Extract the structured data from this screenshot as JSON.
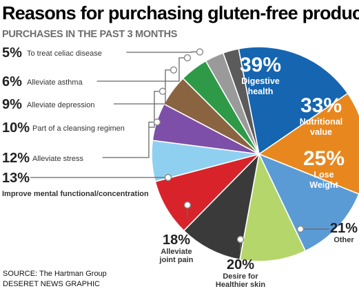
{
  "chart_data": {
    "type": "pie",
    "title": "Reasons for purchasing gluten-free products",
    "subtitle": "PURCHASES IN THE PAST 3 MONTHS",
    "slices": [
      {
        "value_label": "39%",
        "value": 39,
        "label": "Digestive health",
        "label_lines": [
          "Digestive",
          "health"
        ],
        "color": "#1565b0"
      },
      {
        "value_label": "33%",
        "value": 33,
        "label": "Nutritional value",
        "label_lines": [
          "Nutritional",
          "value"
        ],
        "color": "#e8871e"
      },
      {
        "value_label": "25%",
        "value": 25,
        "label": "Lose Weight",
        "label_lines": [
          "Lose",
          "Weight"
        ],
        "color": "#5b9bd5"
      },
      {
        "value_label": "21%",
        "value": 21,
        "label": "Other",
        "label_lines": [
          "Other"
        ],
        "color": "#b5d66b"
      },
      {
        "value_label": "20%",
        "value": 20,
        "label": "Desire for Healthier skin",
        "label_lines": [
          "Desire for",
          "Healthier skin"
        ],
        "color": "#3a3a3a"
      },
      {
        "value_label": "18%",
        "value": 18,
        "label": "Alleviate joint pain",
        "label_lines": [
          "Alleviate",
          "joint pain"
        ],
        "color": "#d9232a"
      },
      {
        "value_label": "13%",
        "value": 13,
        "label": "Improve mental functional/concentration",
        "label_lines": [
          "Improve mental functional/concentration"
        ],
        "color": "#8fd0f0"
      },
      {
        "value_label": "12%",
        "value": 12,
        "label": "Alleviate stress",
        "label_lines": [
          "Alleviate stress"
        ],
        "color": "#7d4fa8"
      },
      {
        "value_label": "10%",
        "value": 10,
        "label": "Part of a cleansing regimen",
        "label_lines": [
          "Part of a cleansing regimen"
        ],
        "color": "#8a6440"
      },
      {
        "value_label": "9%",
        "value": 9,
        "label": "Alleviate depression",
        "label_lines": [
          "Alleviate depression"
        ],
        "color": "#2e9a48"
      },
      {
        "value_label": "6%",
        "value": 6,
        "label": "Alleviate asthma",
        "label_lines": [
          "Alleviate asthma"
        ],
        "color": "#9a9a9a"
      },
      {
        "value_label": "5%",
        "value": 5,
        "label": "To treat celiac disease",
        "label_lines": [
          "To treat celiac disease"
        ],
        "color": "#5b5b5b"
      }
    ]
  },
  "footer": {
    "source": "SOURCE: The Hartman Group",
    "credit": "DESERET NEWS GRAPHIC"
  }
}
